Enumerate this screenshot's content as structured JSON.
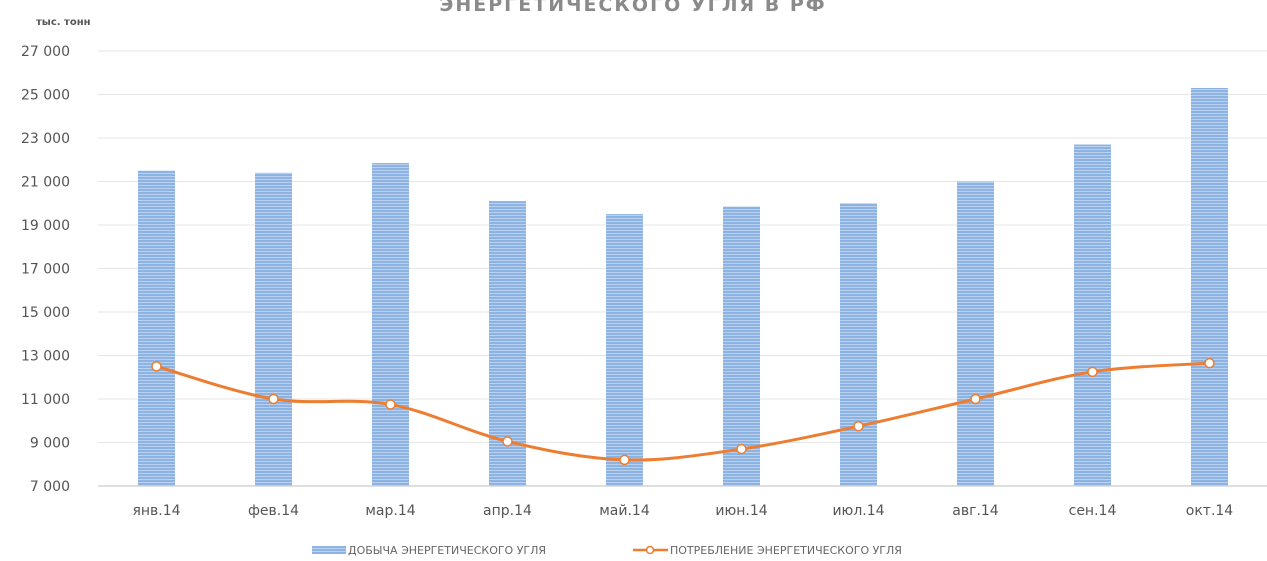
{
  "chart_data": {
    "type": "bar",
    "title": "ЭНЕРГЕТИЧЕСКОГО УГЛЯ В РФ",
    "ylabel": "тыс. тонн",
    "xlabel": "",
    "categories": [
      "янв.14",
      "фев.14",
      "мар.14",
      "апр.14",
      "май.14",
      "июн.14",
      "июл.14",
      "авг.14",
      "сен.14",
      "окт.14"
    ],
    "ylim": [
      7000,
      27000
    ],
    "yticks": [
      "7 000",
      "9 000",
      "11 000",
      "13 000",
      "15 000",
      "17 000",
      "19 000",
      "21 000",
      "23 000",
      "25 000",
      "27 000"
    ],
    "grid": true,
    "legend_position": "bottom",
    "series": [
      {
        "name": "ДОБЫЧА ЭНЕРГЕТИЧЕСКОГО УГЛЯ",
        "type": "bar",
        "color": "#8db3e2",
        "values": [
          21500,
          21400,
          21850,
          20100,
          19500,
          19850,
          20000,
          21000,
          22700,
          25300
        ]
      },
      {
        "name": "ПОТРЕБЛЕНИЕ ЭНЕРГЕТИЧЕСКОГО УГЛЯ",
        "type": "line",
        "color": "#ed7d31",
        "values": [
          12500,
          11000,
          10750,
          9050,
          8200,
          8700,
          9750,
          11000,
          12250,
          12650
        ]
      }
    ]
  }
}
